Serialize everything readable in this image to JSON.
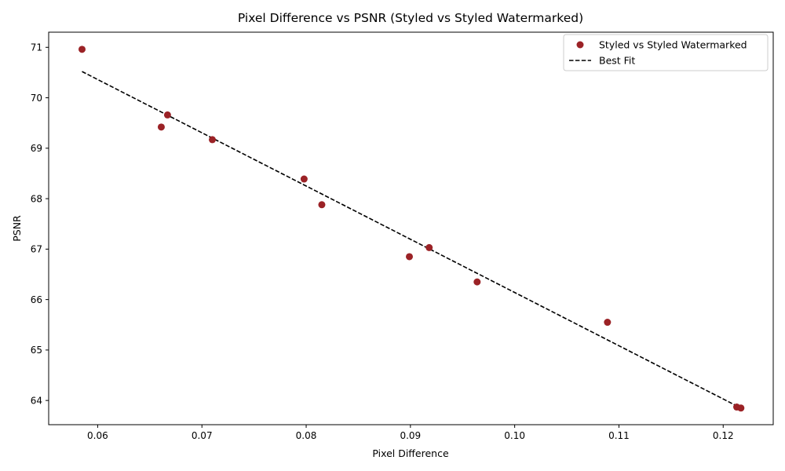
{
  "chart_data": {
    "type": "scatter",
    "title": "Pixel Difference vs PSNR (Styled vs Styled Watermarked)",
    "xlabel": "Pixel Difference",
    "ylabel": "PSNR",
    "xlim": [
      0.0553,
      0.1248
    ],
    "ylim": [
      63.52,
      71.3
    ],
    "xticks": [
      0.06,
      0.07,
      0.08,
      0.09,
      0.1,
      0.11,
      0.12
    ],
    "xtick_labels": [
      "0.06",
      "0.07",
      "0.08",
      "0.09",
      "0.10",
      "0.11",
      "0.12"
    ],
    "yticks": [
      64,
      65,
      66,
      67,
      68,
      69,
      70,
      71
    ],
    "ytick_labels": [
      "64",
      "65",
      "66",
      "67",
      "68",
      "69",
      "70",
      "71"
    ],
    "grid": false,
    "legend_position": "top-right",
    "series": [
      {
        "name": "Styled vs Styled Watermarked",
        "kind": "scatter",
        "color": "#9b2226",
        "points": [
          {
            "x": 0.0585,
            "y": 70.96
          },
          {
            "x": 0.0667,
            "y": 69.66
          },
          {
            "x": 0.0661,
            "y": 69.42
          },
          {
            "x": 0.071,
            "y": 69.17
          },
          {
            "x": 0.0798,
            "y": 68.39
          },
          {
            "x": 0.0815,
            "y": 67.88
          },
          {
            "x": 0.0918,
            "y": 67.03
          },
          {
            "x": 0.0899,
            "y": 66.85
          },
          {
            "x": 0.0964,
            "y": 66.35
          },
          {
            "x": 0.1089,
            "y": 65.55
          },
          {
            "x": 0.1213,
            "y": 63.87
          },
          {
            "x": 0.1217,
            "y": 63.85
          }
        ]
      },
      {
        "name": "Best Fit",
        "kind": "line",
        "color": "#000000",
        "dash": true,
        "points": [
          {
            "x": 0.0585,
            "y": 70.52
          },
          {
            "x": 0.1217,
            "y": 63.85
          }
        ]
      }
    ]
  }
}
